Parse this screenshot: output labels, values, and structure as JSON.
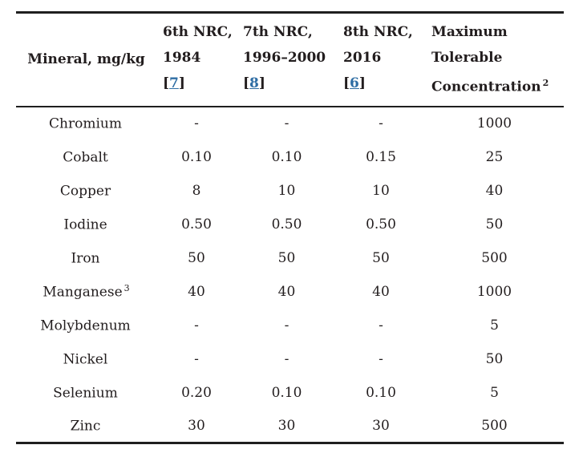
{
  "colors": {
    "link_blue": "#2e6da4",
    "text": "#221d1e",
    "rule": "#1f1f1f",
    "background": "#ffffff"
  },
  "table": {
    "header": {
      "mineral_label": "Mineral, mg/kg",
      "nrc_cols": [
        {
          "line1": "6th NRC,",
          "line2": "1984",
          "ref_open": "[",
          "ref_num": "7",
          "ref_close": "]"
        },
        {
          "line1": "7th NRC,",
          "line2": "1996–2000",
          "ref_open": "[",
          "ref_num": "8",
          "ref_close": "]"
        },
        {
          "line1": "8th NRC,",
          "line2": "2016",
          "ref_open": "[",
          "ref_num": "6",
          "ref_close": "]"
        }
      ],
      "max_col": {
        "line1": "Maximum",
        "line2": "Tolerable",
        "line3": "Concentration",
        "sup": "2"
      }
    },
    "rows": [
      {
        "mineral": "Chromium",
        "sup": "",
        "c1": "-",
        "c2": "-",
        "c3": "-",
        "max": "1000"
      },
      {
        "mineral": "Cobalt",
        "sup": "",
        "c1": "0.10",
        "c2": "0.10",
        "c3": "0.15",
        "max": "25"
      },
      {
        "mineral": "Copper",
        "sup": "",
        "c1": "8",
        "c2": "10",
        "c3": "10",
        "max": "40"
      },
      {
        "mineral": "Iodine",
        "sup": "",
        "c1": "0.50",
        "c2": "0.50",
        "c3": "0.50",
        "max": "50"
      },
      {
        "mineral": "Iron",
        "sup": "",
        "c1": "50",
        "c2": "50",
        "c3": "50",
        "max": "500"
      },
      {
        "mineral": "Manganese",
        "sup": "3",
        "c1": "40",
        "c2": "40",
        "c3": "40",
        "max": "1000"
      },
      {
        "mineral": "Molybdenum",
        "sup": "",
        "c1": "-",
        "c2": "-",
        "c3": "-",
        "max": "5"
      },
      {
        "mineral": "Nickel",
        "sup": "",
        "c1": "-",
        "c2": "-",
        "c3": "-",
        "max": "50"
      },
      {
        "mineral": "Selenium",
        "sup": "",
        "c1": "0.20",
        "c2": "0.10",
        "c3": "0.10",
        "max": "5"
      },
      {
        "mineral": "Zinc",
        "sup": "",
        "c1": "30",
        "c2": "30",
        "c3": "30",
        "max": "500"
      }
    ]
  }
}
